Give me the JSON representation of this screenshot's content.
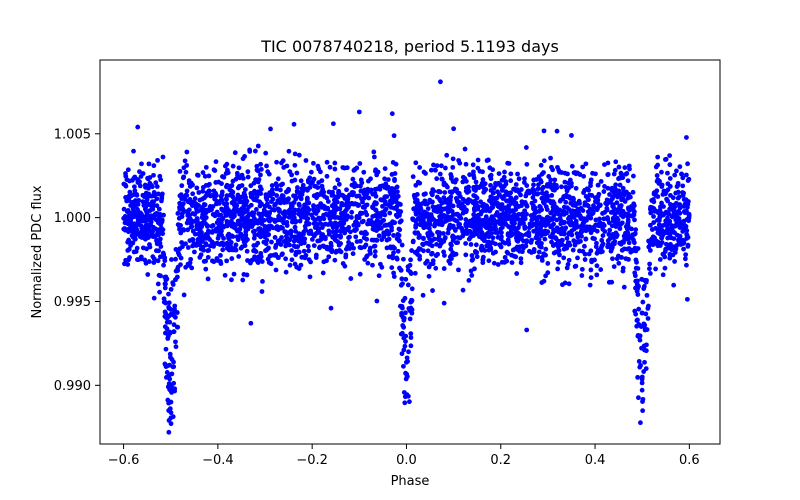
{
  "chart_data": {
    "type": "scatter",
    "title": "TIC 0078740218, period 5.1193 days",
    "xlabel": "Phase",
    "ylabel": "Normalized PDC flux",
    "xlim": [
      -0.65,
      0.665
    ],
    "ylim": [
      0.9865,
      1.0094
    ],
    "xticks": [
      -0.6,
      -0.4,
      -0.2,
      0.0,
      0.2,
      0.4,
      0.6
    ],
    "xtick_labels": [
      "−0.6",
      "−0.4",
      "−0.2",
      "0.0",
      "0.2",
      "0.4",
      "0.6"
    ],
    "yticks": [
      0.99,
      0.995,
      1.0,
      1.005
    ],
    "ytick_labels": [
      "0.990",
      "0.995",
      "1.000",
      "1.005"
    ],
    "grid": false,
    "point_color": "#0000ff",
    "phase_range": [
      -0.6,
      0.6
    ],
    "baseline_flux": 1.0,
    "baseline_scatter": 0.0015,
    "n_points": 3600,
    "eclipses": [
      {
        "center_phase": -0.5,
        "depth": 0.0125,
        "half_width": 0.018
      },
      {
        "center_phase": 0.0,
        "depth": 0.0115,
        "half_width": 0.016
      },
      {
        "center_phase": 0.5,
        "depth": 0.0125,
        "half_width": 0.018
      }
    ],
    "outliers": [
      {
        "x": 0.072,
        "y": 1.0081
      },
      {
        "x": -0.1,
        "y": 1.0063
      },
      {
        "x": -0.03,
        "y": 1.0062
      },
      {
        "x": -0.155,
        "y": 1.0056
      },
      {
        "x": -0.57,
        "y": 1.0054
      },
      {
        "x": 0.255,
        "y": 0.9933
      },
      {
        "x": -0.33,
        "y": 0.9937
      },
      {
        "x": 0.08,
        "y": 0.9949
      },
      {
        "x": -0.16,
        "y": 0.9946
      },
      {
        "x": 0.1,
        "y": 1.0053
      },
      {
        "x": 0.35,
        "y": 1.0049
      }
    ]
  }
}
